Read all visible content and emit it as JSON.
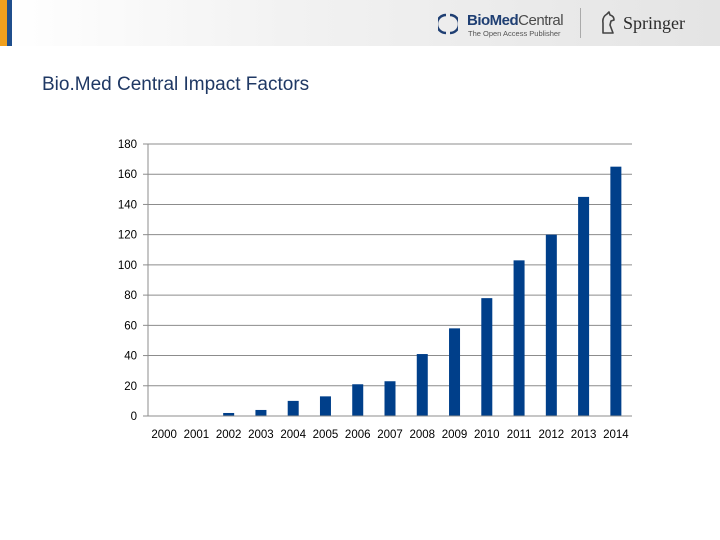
{
  "header": {
    "biomed_logo": {
      "name_bold": "BioMed",
      "name_light": "Central",
      "tagline": "The Open Access Publisher"
    },
    "springer_logo": {
      "name": "Springer"
    }
  },
  "title": "Bio.Med Central Impact Factors",
  "colors": {
    "bar": "#003f8a",
    "grid": "#8c8c8c",
    "title": "#1f3864"
  },
  "chart_data": {
    "type": "bar",
    "title": "",
    "xlabel": "",
    "ylabel": "",
    "categories": [
      "2000",
      "2001",
      "2002",
      "2003",
      "2004",
      "2005",
      "2006",
      "2007",
      "2008",
      "2009",
      "2010",
      "2011",
      "2012",
      "2013",
      "2014"
    ],
    "values": [
      0,
      0,
      2,
      4,
      10,
      13,
      21,
      23,
      41,
      58,
      78,
      103,
      120,
      145,
      165
    ],
    "ylim": [
      0,
      180
    ],
    "yticks": [
      0,
      20,
      40,
      60,
      80,
      100,
      120,
      140,
      160,
      180
    ],
    "grid": true
  }
}
